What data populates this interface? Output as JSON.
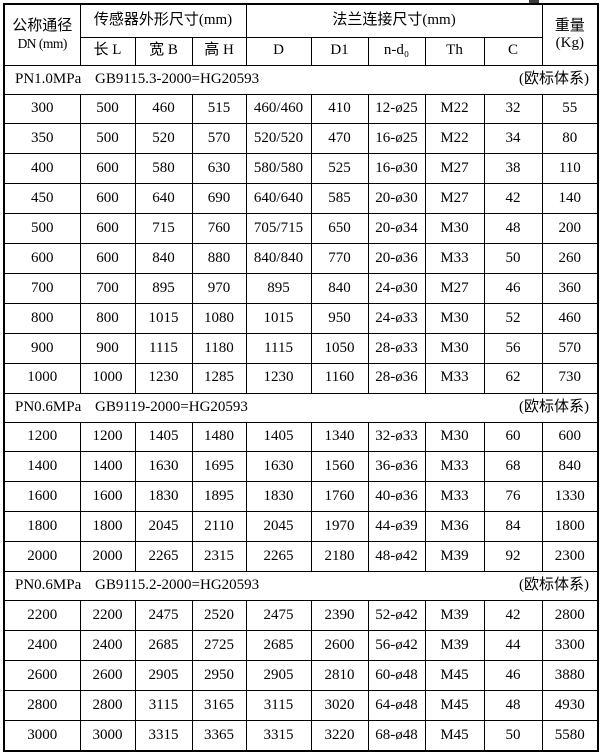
{
  "page": {
    "background": "#ffffff",
    "border_color": "#000000",
    "text_color": "#000000"
  },
  "table": {
    "header": {
      "dn_line1": "公称通径",
      "dn_line2": "DN (mm)",
      "sensor_group": "传感器外形尺寸(mm)",
      "flange_group": "法兰连接尺寸(mm)",
      "weight_line1": "重量",
      "weight_line2": "(Kg)",
      "sensor_cols": [
        "长 L",
        "宽 B",
        "高 H"
      ],
      "flange_cols": [
        "D",
        "D1",
        "n-d₀",
        "Th",
        "C"
      ]
    },
    "column_keys": [
      "dn",
      "length-l",
      "width-b",
      "height-h",
      "d",
      "d1",
      "n-d0",
      "th",
      "c",
      "weight"
    ],
    "sections": [
      {
        "pressure": "PN1.0MPa",
        "standard": "GB9115.3-2000=HG20593",
        "note": "(欧标体系)",
        "rows": [
          [
            "300",
            "500",
            "460",
            "515",
            "460/460",
            "410",
            "12-ø25",
            "M22",
            "32",
            "55"
          ],
          [
            "350",
            "500",
            "520",
            "570",
            "520/520",
            "470",
            "16-ø25",
            "M22",
            "34",
            "80"
          ],
          [
            "400",
            "600",
            "580",
            "630",
            "580/580",
            "525",
            "16-ø30",
            "M27",
            "38",
            "110"
          ],
          [
            "450",
            "600",
            "640",
            "690",
            "640/640",
            "585",
            "20-ø30",
            "M27",
            "42",
            "140"
          ],
          [
            "500",
            "600",
            "715",
            "760",
            "705/715",
            "650",
            "20-ø34",
            "M30",
            "48",
            "200"
          ],
          [
            "600",
            "600",
            "840",
            "880",
            "840/840",
            "770",
            "20-ø36",
            "M33",
            "50",
            "260"
          ],
          [
            "700",
            "700",
            "895",
            "970",
            "895",
            "840",
            "24-ø30",
            "M27",
            "46",
            "360"
          ],
          [
            "800",
            "800",
            "1015",
            "1080",
            "1015",
            "950",
            "24-ø33",
            "M30",
            "52",
            "460"
          ],
          [
            "900",
            "900",
            "1115",
            "1180",
            "1115",
            "1050",
            "28-ø33",
            "M30",
            "56",
            "570"
          ],
          [
            "1000",
            "1000",
            "1230",
            "1285",
            "1230",
            "1160",
            "28-ø36",
            "M33",
            "62",
            "730"
          ]
        ]
      },
      {
        "pressure": "PN0.6MPa",
        "standard": "GB9119-2000=HG20593",
        "note": "(欧标体系)",
        "rows": [
          [
            "1200",
            "1200",
            "1405",
            "1480",
            "1405",
            "1340",
            "32-ø33",
            "M30",
            "60",
            "600"
          ],
          [
            "1400",
            "1400",
            "1630",
            "1695",
            "1630",
            "1560",
            "36-ø36",
            "M33",
            "68",
            "840"
          ],
          [
            "1600",
            "1600",
            "1830",
            "1895",
            "1830",
            "1760",
            "40-ø36",
            "M33",
            "76",
            "1330"
          ],
          [
            "1800",
            "1800",
            "2045",
            "2110",
            "2045",
            "1970",
            "44-ø39",
            "M36",
            "84",
            "1800"
          ],
          [
            "2000",
            "2000",
            "2265",
            "2315",
            "2265",
            "2180",
            "48-ø42",
            "M39",
            "92",
            "2300"
          ]
        ]
      },
      {
        "pressure": "PN0.6MPa",
        "standard": "GB9115.2-2000=HG20593",
        "note": "(欧标体系)",
        "rows": [
          [
            "2200",
            "2200",
            "2475",
            "2520",
            "2475",
            "2390",
            "52-ø42",
            "M39",
            "42",
            "2800"
          ],
          [
            "2400",
            "2400",
            "2685",
            "2725",
            "2685",
            "2600",
            "56-ø42",
            "M39",
            "44",
            "3300"
          ],
          [
            "2600",
            "2600",
            "2905",
            "2950",
            "2905",
            "2810",
            "60-ø48",
            "M45",
            "46",
            "3880"
          ],
          [
            "2800",
            "2800",
            "3115",
            "3165",
            "3115",
            "3020",
            "64-ø48",
            "M45",
            "48",
            "4930"
          ],
          [
            "3000",
            "3000",
            "3315",
            "3365",
            "3315",
            "3220",
            "68-ø48",
            "M45",
            "50",
            "5580"
          ]
        ]
      }
    ]
  }
}
